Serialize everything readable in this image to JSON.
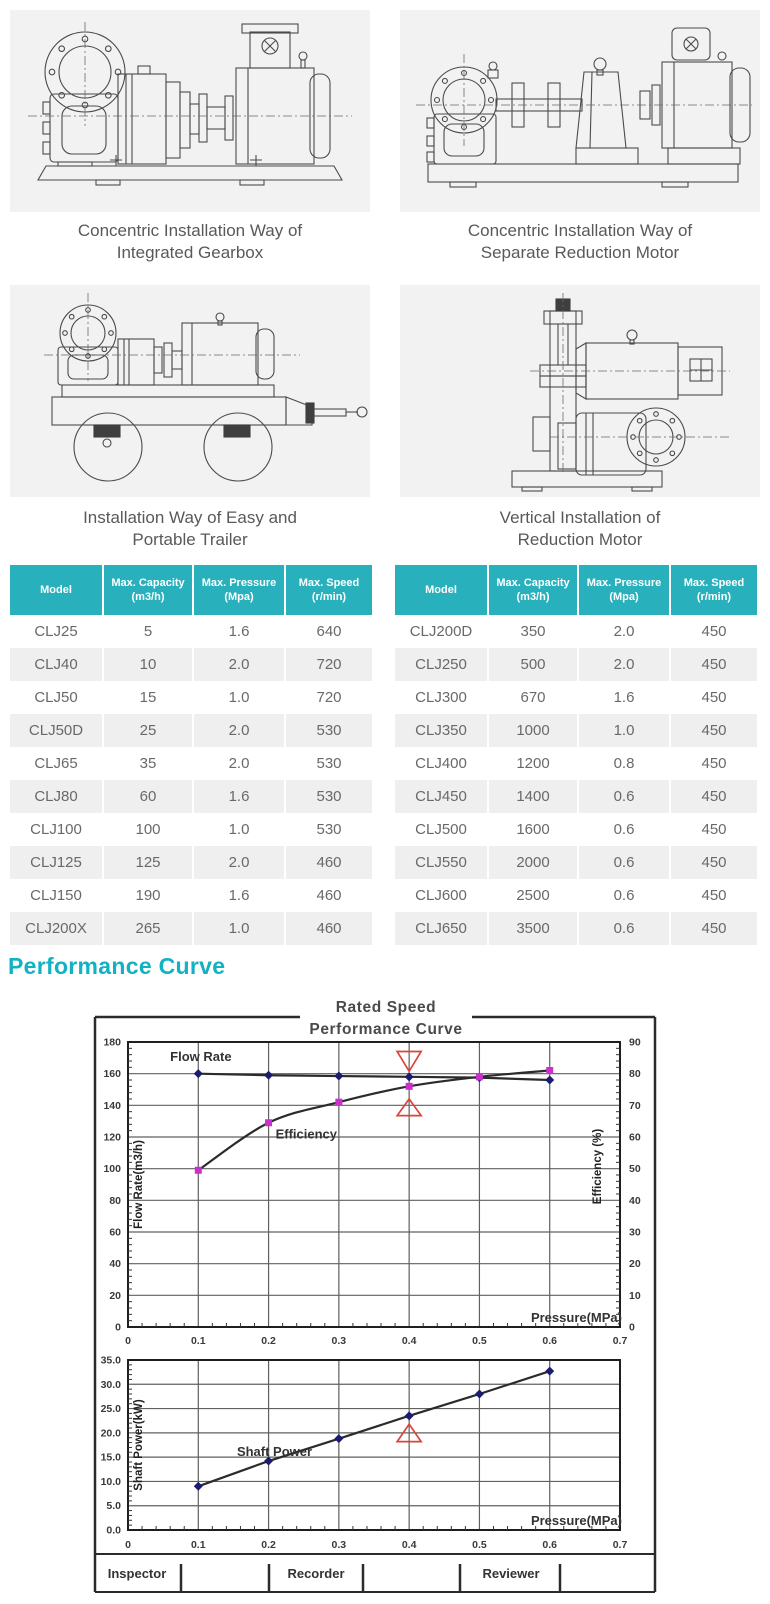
{
  "section_title": "Performance Curve",
  "figures": [
    {
      "caption": [
        "Concentric Installation Way of",
        "Integrated Gearbox"
      ]
    },
    {
      "caption": [
        "Concentric Installation Way of",
        "Separate Reduction Motor"
      ]
    },
    {
      "caption": [
        "Installation Way of Easy and",
        "Portable Trailer"
      ]
    },
    {
      "caption": [
        "Vertical Installation of",
        "Reduction Motor"
      ]
    }
  ],
  "tables": {
    "columns": [
      {
        "lines": [
          "Model"
        ]
      },
      {
        "lines": [
          "Max. Capacity",
          "(m3/h)"
        ]
      },
      {
        "lines": [
          "Max. Pressure",
          "(Mpa)"
        ]
      },
      {
        "lines": [
          "Max. Speed",
          "(r/min)"
        ]
      }
    ],
    "left": {
      "rows": [
        [
          "CLJ25",
          "5",
          "1.6",
          "640"
        ],
        [
          "CLJ40",
          "10",
          "2.0",
          "720"
        ],
        [
          "CLJ50",
          "15",
          "1.0",
          "720"
        ],
        [
          "CLJ50D",
          "25",
          "2.0",
          "530"
        ],
        [
          "CLJ65",
          "35",
          "2.0",
          "530"
        ],
        [
          "CLJ80",
          "60",
          "1.6",
          "530"
        ],
        [
          "CLJ100",
          "100",
          "1.0",
          "530"
        ],
        [
          "CLJ125",
          "125",
          "2.0",
          "460"
        ],
        [
          "CLJ150",
          "190",
          "1.6",
          "460"
        ],
        [
          "CLJ200X",
          "265",
          "1.0",
          "460"
        ]
      ]
    },
    "right": {
      "rows": [
        [
          "CLJ200D",
          "350",
          "2.0",
          "450"
        ],
        [
          "CLJ250",
          "500",
          "2.0",
          "450"
        ],
        [
          "CLJ300",
          "670",
          "1.6",
          "450"
        ],
        [
          "CLJ350",
          "1000",
          "1.0",
          "450"
        ],
        [
          "CLJ400",
          "1200",
          "0.8",
          "450"
        ],
        [
          "CLJ450",
          "1400",
          "0.6",
          "450"
        ],
        [
          "CLJ500",
          "1600",
          "0.6",
          "450"
        ],
        [
          "CLJ550",
          "2000",
          "0.6",
          "450"
        ],
        [
          "CLJ600",
          "2500",
          "0.6",
          "450"
        ],
        [
          "CLJ650",
          "3500",
          "0.6",
          "450"
        ]
      ]
    }
  },
  "chart_data": [
    {
      "type": "line",
      "title_lines": [
        "Rated Speed",
        "Performance  Curve"
      ],
      "xlabel": "Pressure(MPa)",
      "xlim": [
        0,
        0.7
      ],
      "x_ticks": [
        "0",
        "0.1",
        "0.2",
        "0.3",
        "0.4",
        "0.5",
        "0.6",
        "0.7"
      ],
      "grid": true,
      "left_axis": {
        "label": "Flow Rate(m3/h)",
        "lim": [
          0,
          180
        ],
        "step": 20,
        "decimals": 0
      },
      "right_axis": {
        "label": "Efficiency (%)",
        "lim": [
          0,
          90
        ],
        "step": 10
      },
      "series": [
        {
          "name": "Flow Rate",
          "axis": "left",
          "marker": "diamond",
          "marker_color": "#1b1b70",
          "line_color": "#2b2b2b",
          "smooth": false,
          "x": [
            0.1,
            0.2,
            0.3,
            0.4,
            0.5,
            0.6
          ],
          "y": [
            160,
            159,
            158.5,
            158,
            157.5,
            156
          ]
        },
        {
          "name": "Efficiency",
          "axis": "right",
          "marker": "square",
          "marker_color": "#cc2fd0",
          "line_color": "#2b2b2b",
          "smooth": true,
          "x": [
            0.1,
            0.2,
            0.3,
            0.4,
            0.5,
            0.6
          ],
          "y": [
            49.5,
            64.5,
            71,
            76,
            79,
            81
          ]
        }
      ],
      "series_labels": [
        {
          "text": "Flow Rate",
          "x": 0.06,
          "y": 168
        },
        {
          "text": "Efficiency",
          "x": 0.21,
          "y": 119
        }
      ],
      "annotations": [
        {
          "shape": "triangle-down",
          "x": 0.4,
          "y_base": 174,
          "y_apex": 161.5,
          "color": "#d9453a"
        },
        {
          "shape": "triangle-up",
          "x": 0.4,
          "y_base": 133.5,
          "y_apex": 144,
          "color": "#d9453a"
        }
      ]
    },
    {
      "type": "line",
      "xlabel": "Pressure(MPa)",
      "xlim": [
        0,
        0.7
      ],
      "x_ticks": [
        "0",
        "0.1",
        "0.2",
        "0.3",
        "0.4",
        "0.5",
        "0.6",
        "0.7"
      ],
      "grid": true,
      "left_axis": {
        "label": "Shaft Power(kW)",
        "lim": [
          0,
          35
        ],
        "step": 5,
        "decimals": 1
      },
      "series": [
        {
          "name": "Shaft Power",
          "axis": "left",
          "marker": "diamond",
          "marker_color": "#1b1b70",
          "line_color": "#2b2b2b",
          "smooth": false,
          "x": [
            0.1,
            0.2,
            0.3,
            0.4,
            0.5,
            0.6
          ],
          "y": [
            9,
            14.2,
            18.8,
            23.5,
            28,
            32.7
          ]
        }
      ],
      "series_labels": [
        {
          "text": "Shaft Power",
          "x": 0.155,
          "y": 15.2
        }
      ],
      "annotations": [
        {
          "shape": "triangle-up",
          "x": 0.4,
          "y_base": 18.2,
          "y_apex": 21.8,
          "color": "#d9453a"
        }
      ]
    }
  ],
  "footer": {
    "labels": [
      "Inspector",
      "Recorder",
      "Reviewer"
    ]
  },
  "colors": {
    "accent": "#12b2c3",
    "table_header": "#28b1bc",
    "row_alt": "#efefef",
    "marker_navy": "#1b1b70",
    "marker_magenta": "#cc2fd0",
    "annotation_red": "#d9453a"
  }
}
